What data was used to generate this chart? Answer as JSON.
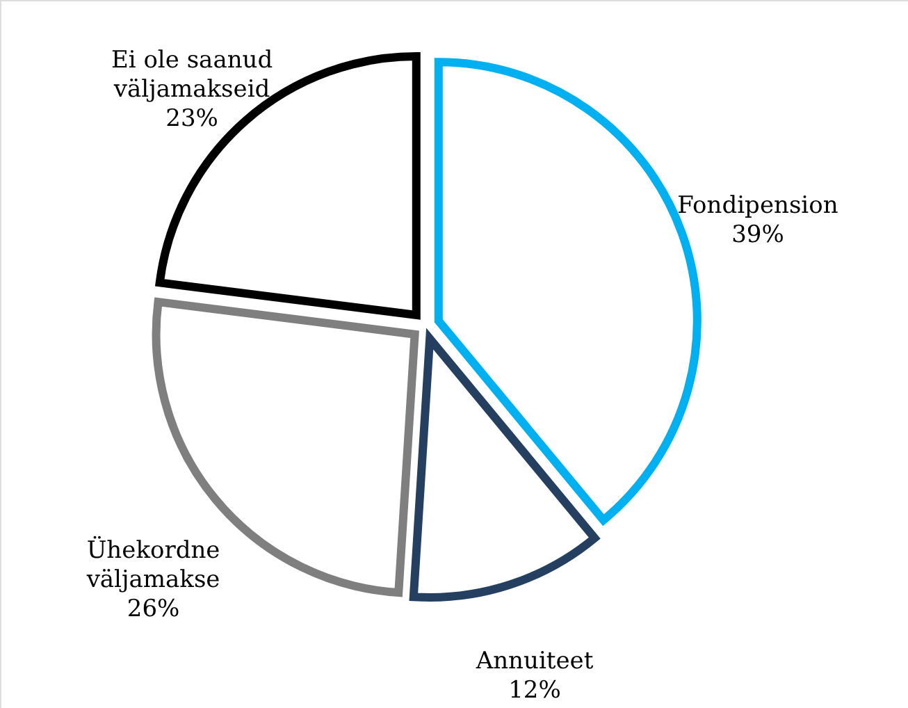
{
  "chart_data": {
    "type": "pie",
    "categories": [
      "Fondipension",
      "Annuiteet",
      "Ühekordne väljamakse",
      "Ei ole saanud väljamakseid"
    ],
    "values": [
      39,
      12,
      26,
      23
    ],
    "colors": [
      "#00b0f0",
      "#243f60",
      "#7f7f7f",
      "#000000"
    ],
    "value_labels": [
      "39%",
      "12%",
      "26%",
      "23%"
    ]
  }
}
